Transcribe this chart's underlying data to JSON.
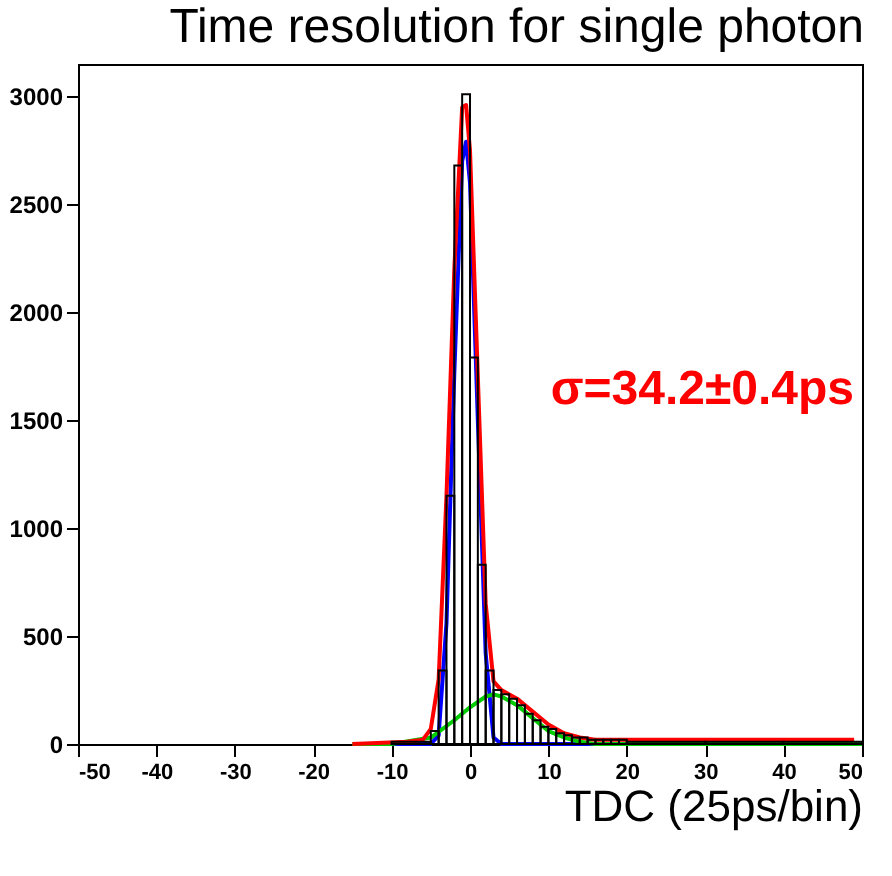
{
  "chart_data": {
    "type": "histogram",
    "title": "Time resolution for single photon",
    "xlabel": "TDC (25ps/bin)",
    "annotations": [
      "σ=34.2±0.4ps"
    ],
    "xlim": [
      -50,
      50
    ],
    "xticks": [
      -50,
      -40,
      -30,
      -20,
      -10,
      0,
      10,
      20,
      30,
      40,
      50
    ],
    "ylim": [
      0,
      3150
    ],
    "yticks": [
      0,
      500,
      1000,
      1500,
      2000,
      2500,
      3000
    ],
    "series": [
      {
        "color": "#000000",
        "bins": [
          -10,
          -5,
          -4,
          -3,
          -2,
          -1,
          0,
          1,
          2,
          3,
          4,
          5,
          6,
          7,
          8,
          9,
          10,
          11,
          12,
          13,
          14,
          15,
          16,
          17,
          18,
          19,
          20,
          30,
          40,
          50
        ],
        "values": [
          10,
          60,
          340,
          1150,
          2680,
          3010,
          1790,
          830,
          340,
          250,
          230,
          210,
          180,
          140,
          110,
          80,
          70,
          50,
          40,
          30,
          30,
          20,
          20,
          20,
          20,
          20,
          10,
          10,
          10
        ]
      },
      {
        "type": "line",
        "color": "#0000ff",
        "x": [
          -10,
          -5,
          -4,
          -3,
          -2,
          -1,
          -0.5,
          0,
          1,
          2,
          3,
          4,
          16
        ],
        "values": [
          0,
          0,
          40,
          560,
          1720,
          2700,
          2790,
          2600,
          1500,
          420,
          30,
          0,
          0
        ]
      },
      {
        "type": "line",
        "color": "#00cc00",
        "x": [
          -15,
          -10,
          -5,
          -2,
          0,
          2,
          3,
          4,
          6,
          8,
          10,
          12,
          14,
          16,
          30,
          50
        ],
        "values": [
          0,
          0,
          30,
          110,
          170,
          220,
          230,
          220,
          180,
          120,
          60,
          30,
          10,
          0,
          0,
          0
        ]
      },
      {
        "type": "line",
        "color": "#ff0000",
        "x": [
          -15,
          -8,
          -6,
          -5,
          -4,
          -3,
          -2,
          -1,
          -0.5,
          0,
          1,
          2,
          3,
          4,
          6,
          8,
          10,
          12,
          14,
          16,
          20,
          30,
          40,
          49
        ],
        "values": [
          0,
          10,
          20,
          70,
          300,
          1150,
          2200,
          2950,
          2960,
          2750,
          1700,
          650,
          290,
          250,
          210,
          150,
          90,
          50,
          30,
          20,
          20,
          20,
          20,
          20
        ]
      }
    ]
  }
}
